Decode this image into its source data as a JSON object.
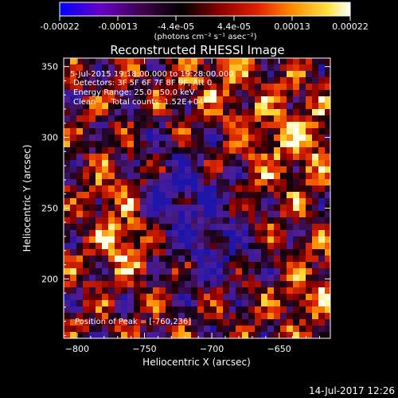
{
  "chart_data": {
    "type": "heatmap",
    "title": "Reconstructed RHESSI Image",
    "xlabel": "Heliocentric X (arcsec)",
    "ylabel": "Heliocentric Y (arcsec)",
    "xlim": [
      -810,
      -612
    ],
    "ylim": [
      158,
      356
    ],
    "x_ticks": [
      -800,
      -750,
      -700,
      -650
    ],
    "y_ticks": [
      200,
      250,
      300,
      350
    ],
    "colorbar": {
      "range": [
        -0.00022,
        0.00022
      ],
      "ticks": [
        "-0.00022",
        "-0.00013",
        "-4.4e-05",
        "4.4e-05",
        "0.00013",
        "0.00022"
      ],
      "unit_label": "(photons cm⁻² s⁻¹ asec⁻²)",
      "colors": [
        "#0000ff",
        "#6a00c8",
        "#3a0040",
        "#000000",
        "#8a0000",
        "#e02000",
        "#ff8c00",
        "#ffe040",
        "#ffffff"
      ]
    },
    "annotations": [
      "5-Jul-2015 19:18:00.000 to 19:28:00.000",
      "Detectors: 3F 5F 6F 7F 8F 9F, Att 0",
      "Energy Range: 25.0 - 50.0 keV",
      "Clean      Total counts: 1.52E+04"
    ],
    "peak_label": "Position of Peak = [-760,236]",
    "peak_position": [
      -760,
      236
    ]
  },
  "footer": {
    "timestamp": "14-Jul-2017 12:26"
  }
}
